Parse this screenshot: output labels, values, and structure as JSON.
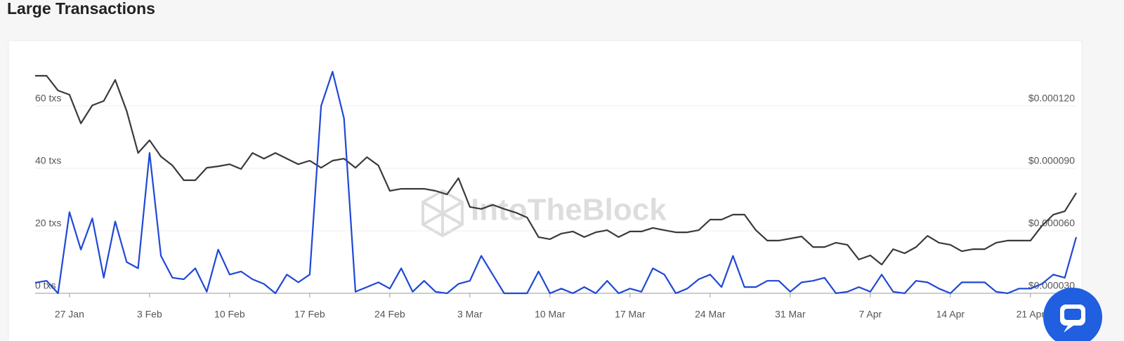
{
  "chart_data": {
    "type": "line",
    "title": "Large Transactions",
    "watermark": "IntoTheBlock",
    "categories": [
      null,
      null,
      null,
      "27 Jan",
      null,
      null,
      null,
      null,
      null,
      null,
      "3 Feb",
      null,
      null,
      null,
      null,
      null,
      null,
      "10 Feb",
      null,
      null,
      null,
      null,
      null,
      null,
      "17 Feb",
      null,
      null,
      null,
      null,
      null,
      null,
      "24 Feb",
      null,
      null,
      null,
      null,
      null,
      null,
      "3 Mar",
      null,
      null,
      null,
      null,
      null,
      null,
      "10 Mar",
      null,
      null,
      null,
      null,
      null,
      null,
      "17 Mar",
      null,
      null,
      null,
      null,
      null,
      null,
      "24 Mar",
      null,
      null,
      null,
      null,
      null,
      null,
      "31 Mar",
      null,
      null,
      null,
      null,
      null,
      null,
      "7 Apr",
      null,
      null,
      null,
      null,
      null,
      null,
      "14 Apr",
      null,
      null,
      null,
      null,
      null,
      null,
      "21 Apr",
      null,
      null,
      null,
      null
    ],
    "series": [
      {
        "color": "#1f48d6",
        "values": [
          3.4,
          4,
          0,
          26,
          14,
          24,
          5,
          23,
          10,
          8,
          45,
          12,
          5,
          4.5,
          8,
          0.5,
          14,
          6,
          7,
          4.5,
          3,
          0,
          6,
          3.5,
          6,
          60,
          71,
          56,
          0.5,
          2,
          3.5,
          1.5,
          8,
          0.5,
          4,
          0.5,
          0,
          3,
          4,
          12,
          6,
          0,
          0,
          0,
          7,
          0,
          1.5,
          0,
          2,
          0,
          4,
          0,
          1.5,
          0.5,
          8,
          6,
          0,
          1.5,
          4.5,
          6,
          2,
          12,
          2,
          2,
          4,
          4,
          0.5,
          3.5,
          4,
          5,
          0,
          0.5,
          2,
          0.5,
          6,
          0.5,
          0,
          4,
          3.5,
          1.5,
          0,
          3.5,
          3.5,
          3.5,
          0.5,
          0,
          1.5,
          1.5,
          3,
          6,
          5,
          18
        ]
      },
      {
        "color": "#3a3a3c",
        "axis": "y2",
        "values": [
          0.0001345,
          0.0001345,
          0.0001274,
          0.0001254,
          0.0001116,
          0.0001203,
          0.0001224,
          0.0001325,
          0.0001176,
          9.74e-05,
          0.0001035,
          9.57e-05,
          9.14e-05,
          8.43e-05,
          8.43e-05,
          9.03e-05,
          9.1e-05,
          9.2e-05,
          8.97e-05,
          9.74e-05,
          9.47e-05,
          9.74e-05,
          9.47e-05,
          9.2e-05,
          9.37e-05,
          9.03e-05,
          9.37e-05,
          9.47e-05,
          9.03e-05,
          9.54e-05,
          9.14e-05,
          7.92e-05,
          8.02e-05,
          8.02e-05,
          8.02e-05,
          7.92e-05,
          7.75e-05,
          8.53e-05,
          7.15e-05,
          7.05e-05,
          7.25e-05,
          7.05e-05,
          6.88e-05,
          6.64e-05,
          5.7e-05,
          5.6e-05,
          5.87e-05,
          5.97e-05,
          5.7e-05,
          5.93e-05,
          6.03e-05,
          5.7e-05,
          5.97e-05,
          5.97e-05,
          6.14e-05,
          6.03e-05,
          5.93e-05,
          5.93e-05,
          6.03e-05,
          6.54e-05,
          6.54e-05,
          6.78e-05,
          6.78e-05,
          6.03e-05,
          5.53e-05,
          5.53e-05,
          5.63e-05,
          5.73e-05,
          5.22e-05,
          5.22e-05,
          5.43e-05,
          5.33e-05,
          4.62e-05,
          4.82e-05,
          4.38e-05,
          5.12e-05,
          4.92e-05,
          5.22e-05,
          5.76e-05,
          5.43e-05,
          5.33e-05,
          5.02e-05,
          5.12e-05,
          5.12e-05,
          5.43e-05,
          5.53e-05,
          5.53e-05,
          5.53e-05,
          6.24e-05,
          6.78e-05,
          6.94e-05,
          7.82e-05
        ]
      }
    ],
    "ylim": [
      0,
      80
    ],
    "yticks": [
      {
        "value": 0,
        "label": "0 txs"
      },
      {
        "value": 20,
        "label": "20 txs"
      },
      {
        "value": 40,
        "label": "40 txs"
      },
      {
        "value": 60,
        "label": "60 txs"
      }
    ],
    "y2lim": [
      3e-05,
      0.00015
    ],
    "y2ticks": [
      {
        "value": 3e-05,
        "label": "$0.000030"
      },
      {
        "value": 6e-05,
        "label": "$0.000060"
      },
      {
        "value": 9e-05,
        "label": "$0.000090"
      },
      {
        "value": 0.00012,
        "label": "$0.000120"
      }
    ],
    "grid": true
  }
}
